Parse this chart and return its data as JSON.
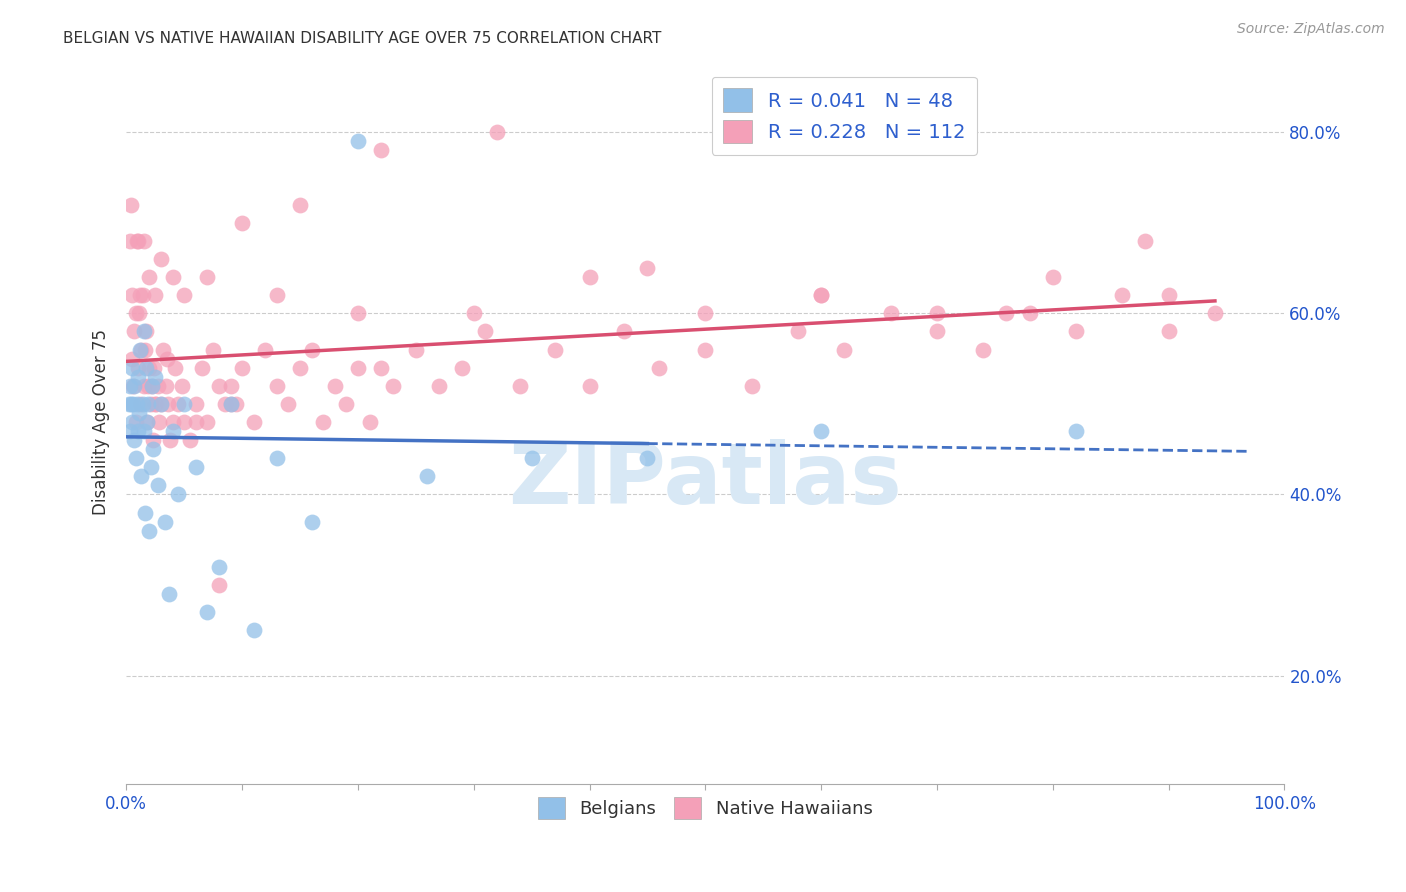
{
  "title": "BELGIAN VS NATIVE HAWAIIAN DISABILITY AGE OVER 75 CORRELATION CHART",
  "source": "Source: ZipAtlas.com",
  "ylabel": "Disability Age Over 75",
  "ytick_labels": [
    "20.0%",
    "40.0%",
    "60.0%",
    "80.0%"
  ],
  "ytick_values": [
    0.2,
    0.4,
    0.6,
    0.8
  ],
  "xlim": [
    0.0,
    1.0
  ],
  "ylim": [
    0.08,
    0.88
  ],
  "belgian_R": 0.041,
  "belgian_N": 48,
  "hawaiian_R": 0.228,
  "hawaiian_N": 112,
  "belgian_color": "#92C0E8",
  "hawaiian_color": "#F4A0B8",
  "belgian_line_color": "#4472C4",
  "hawaiian_line_color": "#D94F70",
  "legend_text_color": "#2E5FCE",
  "background_color": "#FFFFFF",
  "grid_color": "#CCCCCC",
  "watermark_text": "ZIPatlas",
  "watermark_color": "#D8E8F5",
  "title_color": "#333333",
  "source_color": "#999999",
  "axis_label_color": "#333333",
  "tick_color": "#2255CC",
  "belgians_x": [
    0.002,
    0.003,
    0.003,
    0.004,
    0.005,
    0.005,
    0.006,
    0.007,
    0.007,
    0.008,
    0.009,
    0.01,
    0.01,
    0.011,
    0.012,
    0.013,
    0.014,
    0.015,
    0.015,
    0.016,
    0.017,
    0.018,
    0.019,
    0.02,
    0.021,
    0.022,
    0.023,
    0.025,
    0.027,
    0.03,
    0.033,
    0.037,
    0.04,
    0.045,
    0.05,
    0.06,
    0.07,
    0.08,
    0.09,
    0.11,
    0.13,
    0.16,
    0.2,
    0.26,
    0.35,
    0.45,
    0.6,
    0.82
  ],
  "belgians_y": [
    0.5,
    0.52,
    0.47,
    0.5,
    0.48,
    0.54,
    0.5,
    0.46,
    0.52,
    0.44,
    0.5,
    0.47,
    0.53,
    0.49,
    0.56,
    0.42,
    0.5,
    0.58,
    0.47,
    0.38,
    0.54,
    0.48,
    0.5,
    0.36,
    0.43,
    0.52,
    0.45,
    0.53,
    0.41,
    0.5,
    0.37,
    0.29,
    0.47,
    0.4,
    0.5,
    0.43,
    0.27,
    0.32,
    0.5,
    0.25,
    0.44,
    0.37,
    0.79,
    0.42,
    0.44,
    0.44,
    0.47,
    0.47
  ],
  "hawaiians_x": [
    0.003,
    0.004,
    0.005,
    0.006,
    0.007,
    0.008,
    0.009,
    0.01,
    0.011,
    0.012,
    0.013,
    0.014,
    0.015,
    0.016,
    0.017,
    0.018,
    0.019,
    0.02,
    0.021,
    0.022,
    0.023,
    0.024,
    0.025,
    0.026,
    0.027,
    0.028,
    0.03,
    0.032,
    0.034,
    0.036,
    0.038,
    0.04,
    0.042,
    0.045,
    0.048,
    0.05,
    0.055,
    0.06,
    0.065,
    0.07,
    0.075,
    0.08,
    0.085,
    0.09,
    0.095,
    0.1,
    0.11,
    0.12,
    0.13,
    0.14,
    0.15,
    0.16,
    0.17,
    0.18,
    0.19,
    0.2,
    0.21,
    0.22,
    0.23,
    0.25,
    0.27,
    0.29,
    0.31,
    0.34,
    0.37,
    0.4,
    0.43,
    0.46,
    0.5,
    0.54,
    0.58,
    0.62,
    0.66,
    0.7,
    0.74,
    0.78,
    0.82,
    0.86,
    0.9,
    0.94,
    0.005,
    0.008,
    0.012,
    0.02,
    0.03,
    0.05,
    0.08,
    0.13,
    0.2,
    0.3,
    0.4,
    0.5,
    0.6,
    0.7,
    0.8,
    0.9,
    0.01,
    0.025,
    0.04,
    0.07,
    0.1,
    0.15,
    0.22,
    0.32,
    0.45,
    0.6,
    0.76,
    0.88,
    0.015,
    0.035,
    0.06,
    0.09
  ],
  "hawaiians_y": [
    0.68,
    0.72,
    0.55,
    0.52,
    0.58,
    0.48,
    0.68,
    0.54,
    0.6,
    0.5,
    0.56,
    0.62,
    0.52,
    0.56,
    0.58,
    0.48,
    0.52,
    0.54,
    0.5,
    0.52,
    0.46,
    0.54,
    0.5,
    0.5,
    0.52,
    0.48,
    0.5,
    0.56,
    0.52,
    0.5,
    0.46,
    0.48,
    0.54,
    0.5,
    0.52,
    0.48,
    0.46,
    0.5,
    0.54,
    0.48,
    0.56,
    0.52,
    0.5,
    0.52,
    0.5,
    0.54,
    0.48,
    0.56,
    0.52,
    0.5,
    0.54,
    0.56,
    0.48,
    0.52,
    0.5,
    0.54,
    0.48,
    0.54,
    0.52,
    0.56,
    0.52,
    0.54,
    0.58,
    0.52,
    0.56,
    0.52,
    0.58,
    0.54,
    0.56,
    0.52,
    0.58,
    0.56,
    0.6,
    0.58,
    0.56,
    0.6,
    0.58,
    0.62,
    0.58,
    0.6,
    0.62,
    0.6,
    0.62,
    0.64,
    0.66,
    0.62,
    0.3,
    0.62,
    0.6,
    0.6,
    0.64,
    0.6,
    0.62,
    0.6,
    0.64,
    0.62,
    0.68,
    0.62,
    0.64,
    0.64,
    0.7,
    0.72,
    0.78,
    0.8,
    0.65,
    0.62,
    0.6,
    0.68,
    0.68,
    0.55,
    0.48,
    0.5
  ]
}
